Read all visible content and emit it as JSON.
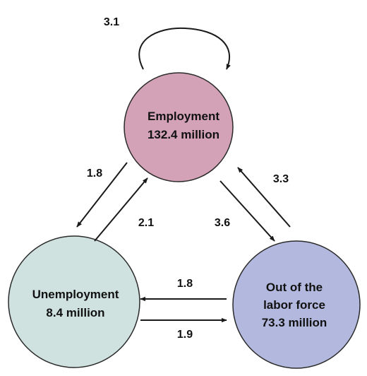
{
  "colors": {
    "employment": "#d3a2b6",
    "unemployment": "#cfe2df",
    "out_of_labor_force": "#b3b9de",
    "arrow": "#1a1a1a"
  },
  "nodes": {
    "employment": {
      "line1": "Employment",
      "line2": "132.4 million"
    },
    "unemployment": {
      "line1": "Unemployment",
      "line2": "8.4 million"
    },
    "out_of_labor_force": {
      "line1": "Out of the",
      "line2": "labor force",
      "line3": "73.3 million"
    }
  },
  "flows": {
    "employment_to_employment": "3.1",
    "employment_to_unemployment": "1.8",
    "unemployment_to_employment": "2.1",
    "employment_to_out": "3.6",
    "out_to_employment": "3.3",
    "out_to_unemployment": "1.8",
    "unemployment_to_out": "1.9"
  }
}
